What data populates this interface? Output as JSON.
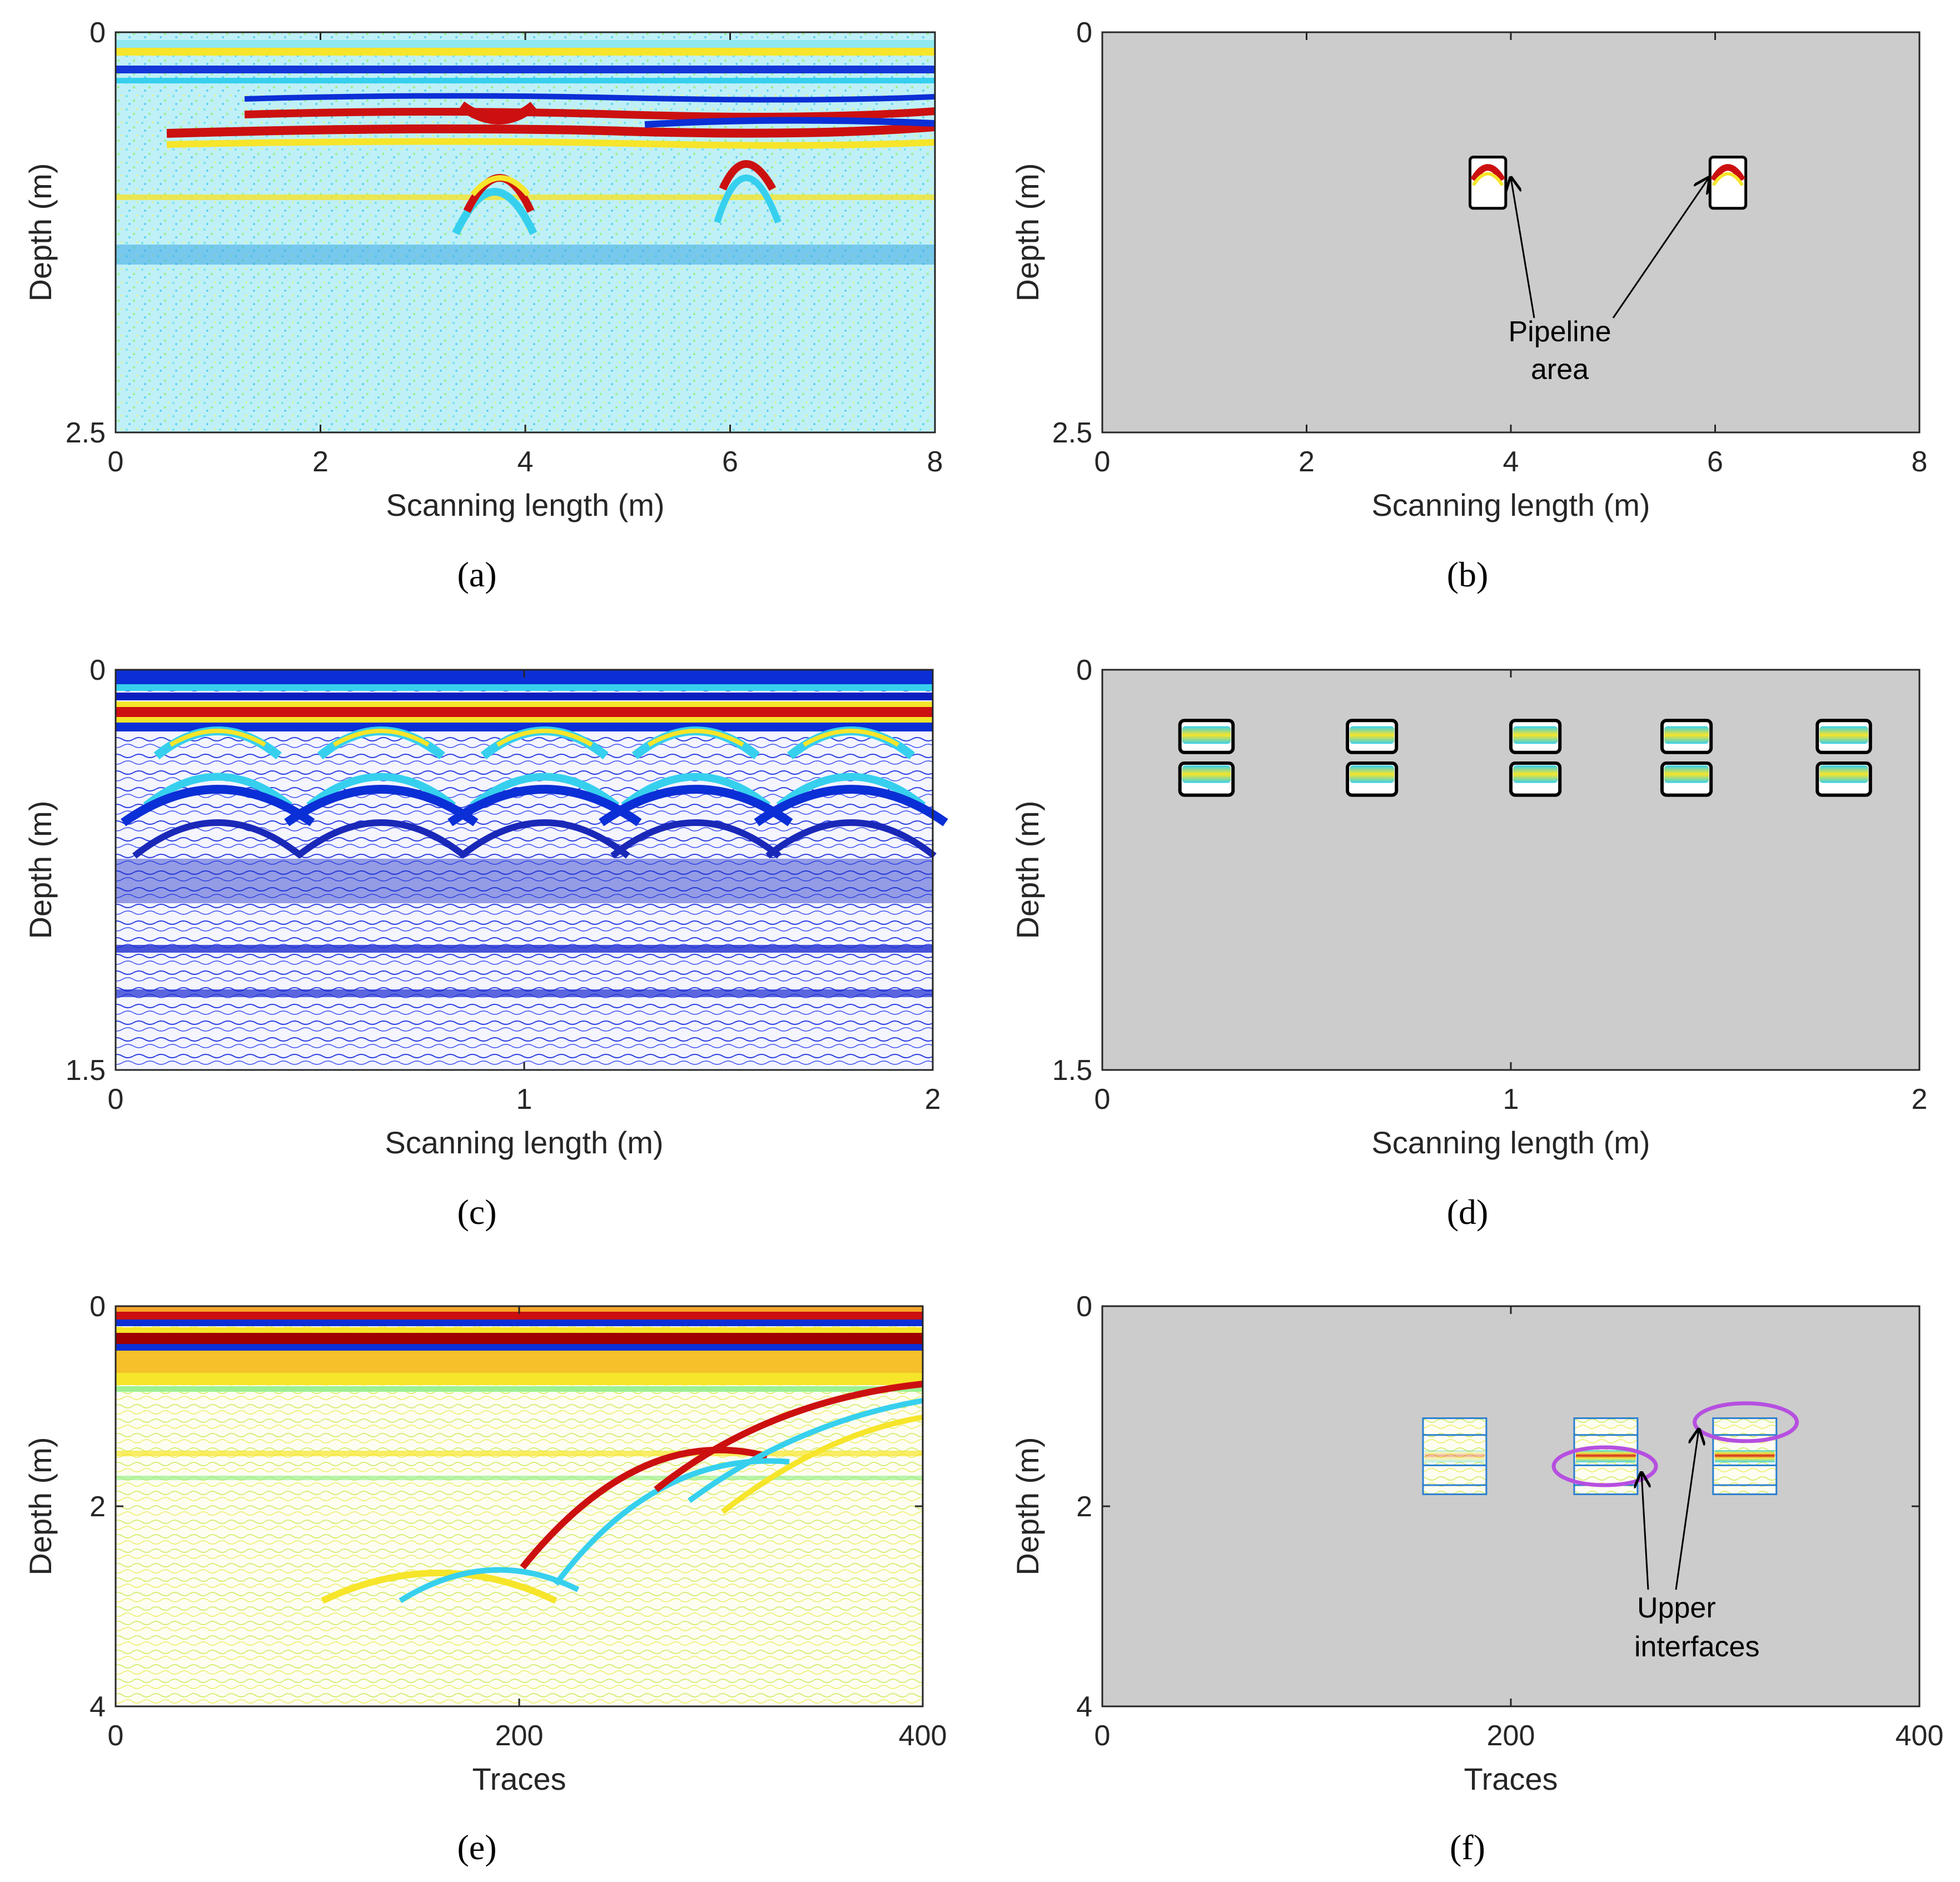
{
  "figure_title": "",
  "colors": {
    "gray_background": "#cccccc",
    "axis": "#262626",
    "ellipse": "#b64fe0",
    "jet_red": "#cc1010",
    "jet_yellow": "#f6e52a",
    "jet_cyan": "#36d0ee",
    "jet_blue": "#0b2fd6"
  },
  "chart_data": [
    {
      "panel": "a",
      "type": "heatmap",
      "caption": "(a)",
      "xlabel": "Scanning length (m)",
      "ylabel": "Depth (m)",
      "xlim": [
        0,
        8
      ],
      "ylim": [
        0,
        2.5
      ],
      "xticks": [
        "0",
        "2",
        "4",
        "6",
        "8"
      ],
      "yticks": [
        "0",
        "2.5"
      ],
      "colormap": "jet",
      "grid": false,
      "content": "GPR B-scan contour image",
      "hyperbolas": [
        {
          "apex_x": 3.8,
          "apex_depth": 0.8
        },
        {
          "apex_x": 6.1,
          "apex_depth": 0.8
        }
      ]
    },
    {
      "panel": "b",
      "type": "heatmap",
      "caption": "(b)",
      "xlabel": "Scanning length (m)",
      "ylabel": "Depth (m)",
      "xlim": [
        0,
        8
      ],
      "ylim": [
        0,
        2.5
      ],
      "xticks": [
        "0",
        "2",
        "4",
        "6",
        "8"
      ],
      "yticks": [
        "0",
        "2.5"
      ],
      "background": "gray",
      "regions": [
        {
          "x_start": 3.6,
          "x_end": 3.95,
          "depth_start": 0.78,
          "depth_end": 1.1
        },
        {
          "x_start": 5.95,
          "x_end": 6.3,
          "depth_start": 0.78,
          "depth_end": 1.1
        }
      ],
      "annotation": {
        "text_line1": "Pipeline",
        "text_line2": "area"
      }
    },
    {
      "panel": "c",
      "type": "heatmap",
      "caption": "(c)",
      "xlabel": "Scanning length (m)",
      "ylabel": "Depth (m)",
      "xlim": [
        0,
        2
      ],
      "ylim": [
        0,
        1.5
      ],
      "xticks": [
        "0",
        "1",
        "2"
      ],
      "yticks": [
        "0",
        "1.5"
      ],
      "colormap": "jet",
      "grid": false,
      "content": "GPR B-scan contour image",
      "hyperbola_apexes_x": [
        0.25,
        0.65,
        1.05,
        1.42,
        1.8
      ]
    },
    {
      "panel": "d",
      "type": "heatmap",
      "caption": "(d)",
      "xlabel": "Scanning length (m)",
      "ylabel": "Depth (m)",
      "xlim": [
        0,
        2
      ],
      "ylim": [
        0,
        1.5
      ],
      "xticks": [
        "0",
        "1",
        "2"
      ],
      "yticks": [
        "0",
        "1.5"
      ],
      "background": "gray",
      "regions": [
        {
          "x_start": 0.19,
          "x_end": 0.32,
          "depth_start": 0.19,
          "depth_end": 0.31
        },
        {
          "x_start": 0.19,
          "x_end": 0.32,
          "depth_start": 0.35,
          "depth_end": 0.47
        },
        {
          "x_start": 0.6,
          "x_end": 0.72,
          "depth_start": 0.19,
          "depth_end": 0.31
        },
        {
          "x_start": 0.6,
          "x_end": 0.72,
          "depth_start": 0.35,
          "depth_end": 0.47
        },
        {
          "x_start": 1.0,
          "x_end": 1.12,
          "depth_start": 0.19,
          "depth_end": 0.31
        },
        {
          "x_start": 1.0,
          "x_end": 1.12,
          "depth_start": 0.35,
          "depth_end": 0.47
        },
        {
          "x_start": 1.37,
          "x_end": 1.49,
          "depth_start": 0.19,
          "depth_end": 0.31
        },
        {
          "x_start": 1.37,
          "x_end": 1.49,
          "depth_start": 0.35,
          "depth_end": 0.47
        },
        {
          "x_start": 1.75,
          "x_end": 1.88,
          "depth_start": 0.19,
          "depth_end": 0.31
        },
        {
          "x_start": 1.75,
          "x_end": 1.88,
          "depth_start": 0.35,
          "depth_end": 0.47
        }
      ]
    },
    {
      "panel": "e",
      "type": "heatmap",
      "caption": "(e)",
      "xlabel": "Traces",
      "ylabel": "Depth (m)",
      "xlim": [
        0,
        400
      ],
      "ylim": [
        0,
        4
      ],
      "xticks": [
        "0",
        "200",
        "400"
      ],
      "yticks": [
        "0",
        "2",
        "4"
      ],
      "colormap": "jet",
      "grid": false,
      "content": "GPR B-scan contour image"
    },
    {
      "panel": "f",
      "type": "heatmap",
      "caption": "(f)",
      "xlabel": "Traces",
      "ylabel": "Depth (m)",
      "xlim": [
        0,
        400
      ],
      "ylim": [
        0,
        4
      ],
      "xticks": [
        "0",
        "200",
        "400"
      ],
      "yticks": [
        "0",
        "2",
        "4"
      ],
      "background": "gray",
      "regions": [
        {
          "x_start": 157,
          "x_end": 188,
          "depth_start": 1.12,
          "depth_end": 1.88
        },
        {
          "x_start": 231,
          "x_end": 262,
          "depth_start": 1.12,
          "depth_end": 1.88
        },
        {
          "x_start": 299,
          "x_end": 330,
          "depth_start": 1.12,
          "depth_end": 1.88
        }
      ],
      "ellipses": [
        {
          "center_x": 246,
          "center_depth": 1.6
        },
        {
          "center_x": 315,
          "center_depth": 1.16
        }
      ],
      "annotation": {
        "text_line1": "Upper",
        "text_line2": "interfaces"
      }
    }
  ]
}
